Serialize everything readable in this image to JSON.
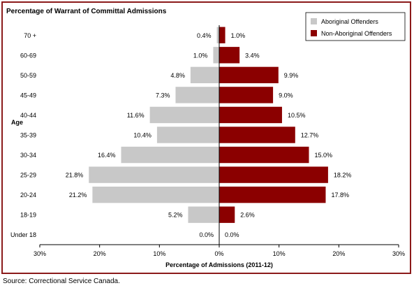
{
  "chart_data": {
    "type": "bar",
    "orientation": "horizontal",
    "layout": "population-pyramid",
    "title": "Percentage of Warrant of Committal Admissions",
    "xlabel": "Percentage of Admissions (2011-12)",
    "ylabel": "Age",
    "xlim": [
      -30,
      30
    ],
    "x_ticks": [
      "30%",
      "20%",
      "10%",
      "0%",
      "10%",
      "20%",
      "30%"
    ],
    "categories": [
      "70 +",
      "60-69",
      "50-59",
      "45-49",
      "40-44",
      "35-39",
      "30-34",
      "25-29",
      "20-24",
      "18-19",
      "Under 18"
    ],
    "series": [
      {
        "name": "Aboriginal Offenders",
        "side": "left",
        "color": "#c8c8c8",
        "values": [
          0.4,
          1.0,
          4.8,
          7.3,
          11.6,
          10.4,
          16.4,
          21.8,
          21.2,
          5.2,
          0.0
        ],
        "labels": [
          "0.4%",
          "1.0%",
          "4.8%",
          "7.3%",
          "11.6%",
          "10.4%",
          "16.4%",
          "21.8%",
          "21.2%",
          "5.2%",
          "0.0%"
        ]
      },
      {
        "name": "Non-Aboriginal Offenders",
        "side": "right",
        "color": "#8b0000",
        "values": [
          1.0,
          3.4,
          9.9,
          9.0,
          10.5,
          12.7,
          15.0,
          18.2,
          17.8,
          2.6,
          0.0
        ],
        "labels": [
          "1.0%",
          "3.4%",
          "9.9%",
          "9.0%",
          "10.5%",
          "12.7%",
          "15.0%",
          "18.2%",
          "17.8%",
          "2.6%",
          "0.0%"
        ]
      }
    ],
    "legend_position": "top-right",
    "grid": false,
    "frame_color": "#8b1a1a"
  },
  "source_note": "Source:  Correctional Service Canada."
}
